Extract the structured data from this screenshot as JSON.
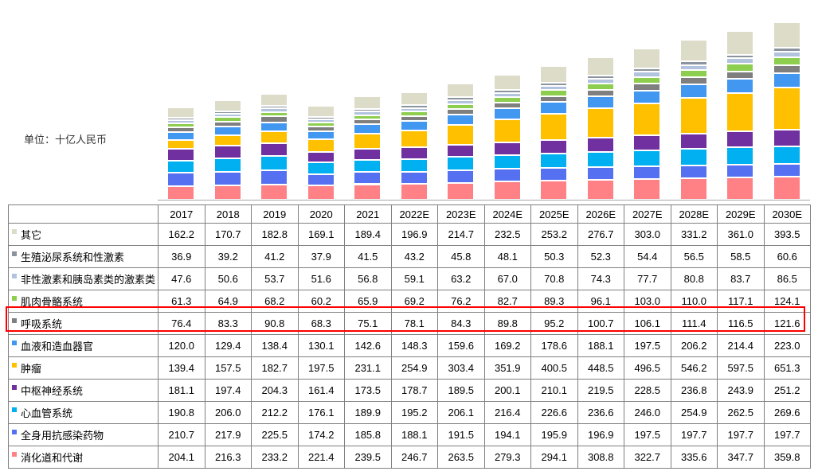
{
  "unit_label": "单位：十亿人民币",
  "highlight": {
    "series": "呼吸系统",
    "color": "#FF0000"
  },
  "chart_data": {
    "type": "bar",
    "stacked": true,
    "orientation": "vertical",
    "unit": "十亿人民币",
    "title": "",
    "gridlines": false,
    "legend_position": "table-first-column",
    "value_axis_hint": [
      0,
      3000
    ],
    "stacking_note": "bottom-to-top stacking is the reverse of the series list order",
    "categories": [
      "2017",
      "2018",
      "2019",
      "2020",
      "2021",
      "2022E",
      "2023E",
      "2024E",
      "2025E",
      "2026E",
      "2027E",
      "2028E",
      "2029E",
      "2030E"
    ],
    "series": [
      {
        "name": "其它",
        "color": "#DDDCC8",
        "values": [
          "162.2",
          "170.7",
          "182.8",
          "169.1",
          "189.4",
          "196.9",
          "214.7",
          "232.5",
          "253.2",
          "276.7",
          "303.0",
          "331.2",
          "361.0",
          "393.5"
        ]
      },
      {
        "name": "生殖泌尿系统和性激素",
        "color": "#8A939E",
        "values": [
          "36.9",
          "39.2",
          "41.2",
          "37.9",
          "41.5",
          "43.2",
          "45.8",
          "48.1",
          "50.3",
          "52.3",
          "54.4",
          "56.5",
          "58.5",
          "60.6"
        ]
      },
      {
        "name": "非性激素和胰岛素类的激素类",
        "color": "#B2C4DD",
        "values": [
          "47.6",
          "50.6",
          "53.7",
          "51.6",
          "56.8",
          "59.1",
          "63.2",
          "67.0",
          "70.8",
          "74.3",
          "77.7",
          "80.8",
          "83.7",
          "86.5"
        ]
      },
      {
        "name": "肌肉骨骼系统",
        "color": "#8DCE4F",
        "values": [
          "61.3",
          "64.9",
          "68.2",
          "60.2",
          "65.9",
          "69.2",
          "76.2",
          "82.7",
          "89.3",
          "96.1",
          "103.0",
          "110.0",
          "117.1",
          "124.1"
        ]
      },
      {
        "name": "呼吸系统",
        "color": "#7F7F7F",
        "values": [
          "76.4",
          "83.3",
          "90.8",
          "68.3",
          "75.1",
          "78.1",
          "84.3",
          "89.8",
          "95.2",
          "100.7",
          "106.1",
          "111.4",
          "116.5",
          "121.6"
        ]
      },
      {
        "name": "血液和造血器官",
        "color": "#4297F0",
        "values": [
          "120.0",
          "129.4",
          "138.4",
          "130.1",
          "142.6",
          "148.3",
          "159.6",
          "169.2",
          "178.6",
          "188.1",
          "197.5",
          "206.2",
          "214.4",
          "223.0"
        ]
      },
      {
        "name": "肿瘤",
        "color": "#FFC000",
        "values": [
          "139.4",
          "157.5",
          "182.7",
          "197.5",
          "231.1",
          "254.9",
          "303.4",
          "351.9",
          "400.5",
          "448.5",
          "496.5",
          "546.2",
          "597.5",
          "651.3"
        ]
      },
      {
        "name": "中枢神经系统",
        "color": "#7030A0",
        "values": [
          "181.1",
          "197.4",
          "204.3",
          "161.4",
          "173.5",
          "178.7",
          "189.5",
          "200.1",
          "210.1",
          "219.5",
          "228.5",
          "236.8",
          "243.9",
          "251.2"
        ]
      },
      {
        "name": "心血管系统",
        "color": "#00B0F0",
        "values": [
          "190.8",
          "206.0",
          "212.2",
          "176.1",
          "189.9",
          "195.2",
          "206.1",
          "216.4",
          "226.6",
          "236.6",
          "246.0",
          "254.9",
          "262.5",
          "269.6"
        ]
      },
      {
        "name": "全身用抗感染药物",
        "color": "#5571F2",
        "values": [
          "210.7",
          "217.9",
          "225.5",
          "174.2",
          "185.8",
          "188.1",
          "191.5",
          "194.1",
          "195.9",
          "196.9",
          "197.5",
          "197.7",
          "197.7",
          "197.7"
        ]
      },
      {
        "name": "消化道和代谢",
        "color": "#FF8185",
        "values": [
          "204.1",
          "216.3",
          "233.2",
          "221.4",
          "239.5",
          "246.7",
          "263.5",
          "279.3",
          "294.1",
          "308.8",
          "322.7",
          "335.6",
          "347.7",
          "359.8"
        ]
      }
    ]
  }
}
